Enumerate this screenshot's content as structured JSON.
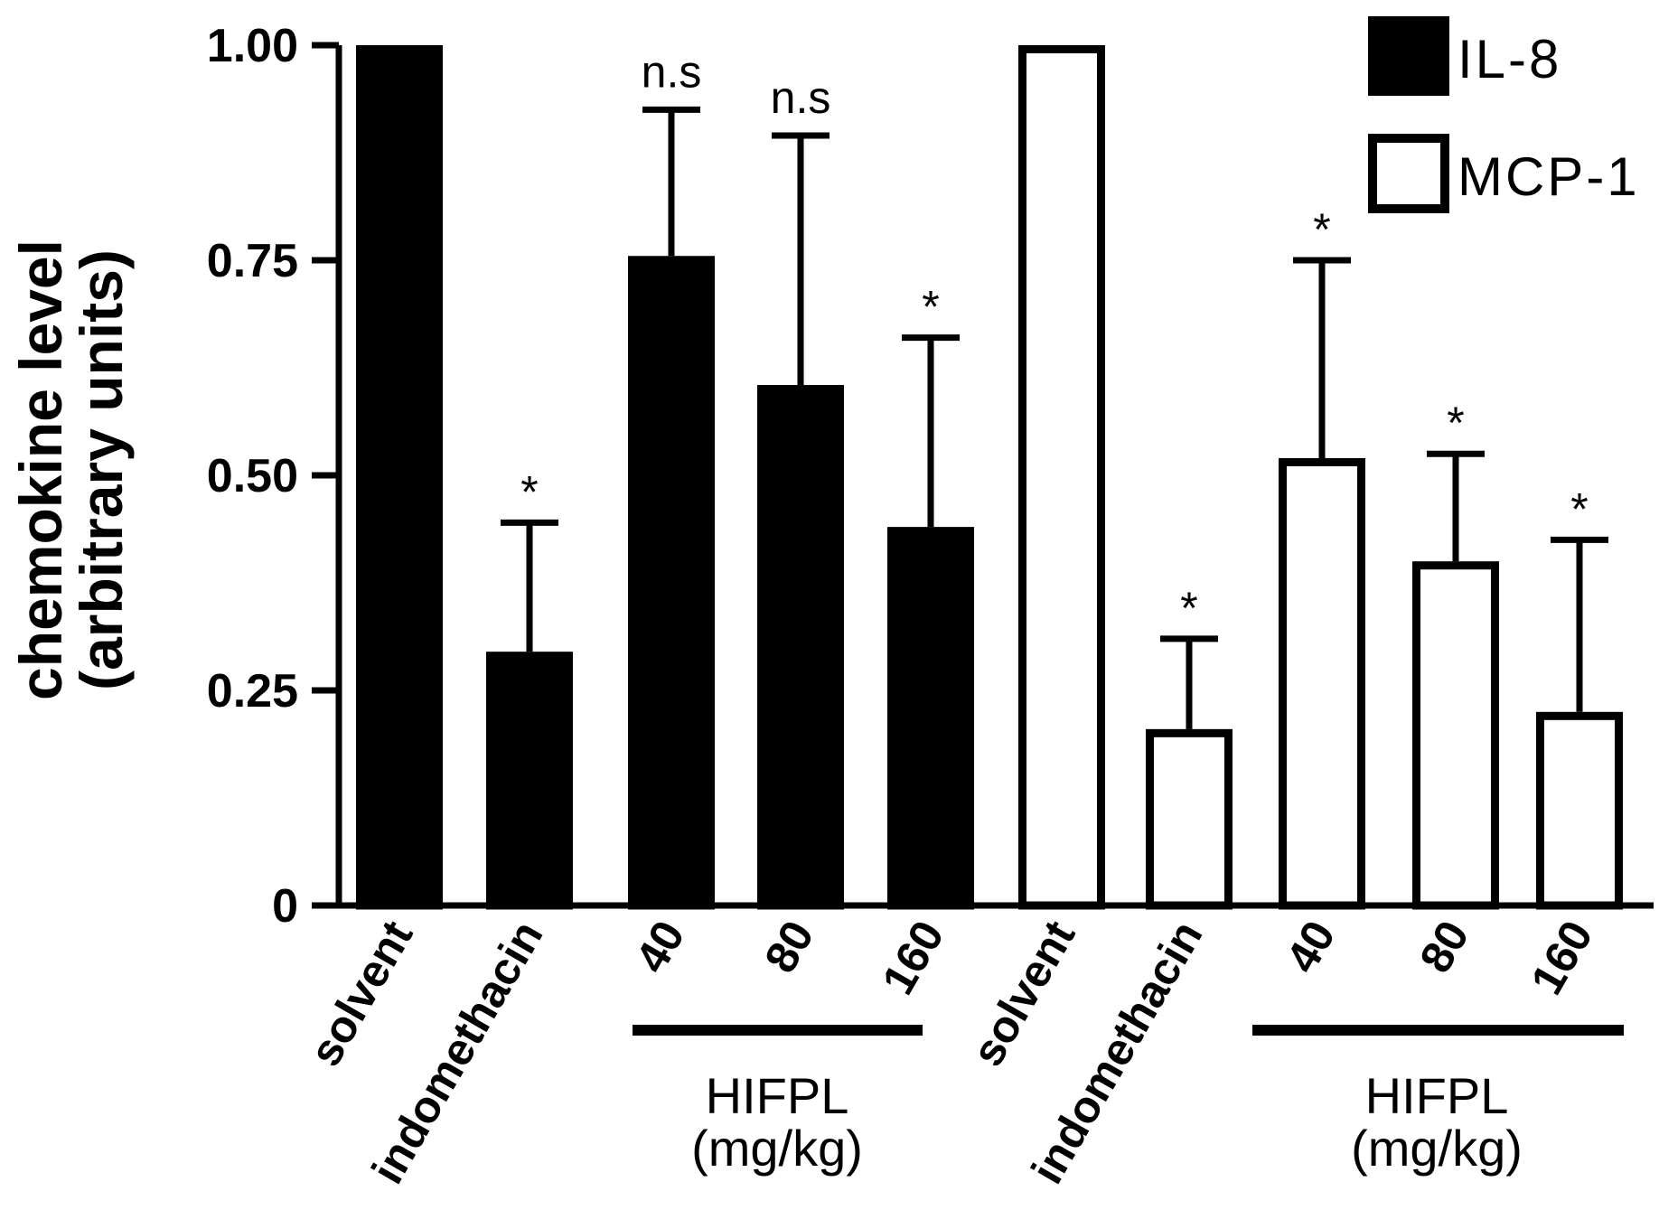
{
  "chart_data": {
    "type": "bar",
    "title": "",
    "xlabel": "",
    "ylabel_line1": "chemokine level",
    "ylabel_line2": "(arbitrary units)",
    "ylim": [
      0,
      1
    ],
    "yticks": [
      "0",
      "0.25",
      "0.50",
      "0.75",
      "1.00"
    ],
    "ytick_values": [
      0,
      0.25,
      0.5,
      0.75,
      1.0
    ],
    "series": [
      {
        "name": "IL-8",
        "fill": "#000000",
        "categories": [
          "solvent",
          "indomethacin",
          "40",
          "80",
          "160"
        ],
        "values": [
          1.0,
          0.295,
          0.755,
          0.605,
          0.44
        ],
        "errors": [
          0,
          0.15,
          0.17,
          0.29,
          0.22
        ],
        "annotations": [
          "",
          "*",
          "n.s",
          "n.s",
          "*"
        ]
      },
      {
        "name": "MCP-1",
        "fill": "#ffffff",
        "categories": [
          "solvent",
          "indomethacin",
          "40",
          "80",
          "160"
        ],
        "values": [
          1.0,
          0.205,
          0.52,
          0.4,
          0.225
        ],
        "errors": [
          0,
          0.105,
          0.23,
          0.125,
          0.2
        ],
        "annotations": [
          "",
          "*",
          "*",
          "*",
          "*"
        ]
      }
    ],
    "groups": [
      {
        "line1": "HIFPL",
        "line2": "(mg/kg)"
      },
      {
        "line1": "HIFPL",
        "line2": "(mg/kg)"
      }
    ],
    "legend": {
      "position": "top-right"
    }
  }
}
